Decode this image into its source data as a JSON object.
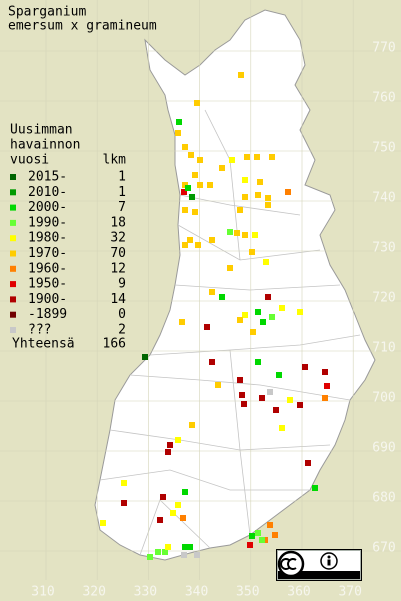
{
  "title": [
    "Sparganium",
    "emersum x gramineum"
  ],
  "legend": {
    "heading": [
      "Uusimman",
      "havainnon",
      "vuosi"
    ],
    "count_header": "lkm",
    "entries": [
      {
        "label": "2015-",
        "count": 1,
        "color": "#006400"
      },
      {
        "label": "2010-",
        "count": 1,
        "color": "#009a00"
      },
      {
        "label": "2000-",
        "count": 7,
        "color": "#00d800"
      },
      {
        "label": "1990-",
        "count": 18,
        "color": "#66ff33"
      },
      {
        "label": "1980-",
        "count": 32,
        "color": "#ffff00"
      },
      {
        "label": "1970-",
        "count": 70,
        "color": "#ffcc00"
      },
      {
        "label": "1960-",
        "count": 12,
        "color": "#ff8000"
      },
      {
        "label": "1950-",
        "count": 9,
        "color": "#e00000"
      },
      {
        "label": "1900-",
        "count": 14,
        "color": "#b00000"
      },
      {
        "label": "-1899",
        "count": 0,
        "color": "#700000"
      },
      {
        "label": "???",
        "count": 2,
        "color": "#c8c8c8"
      }
    ],
    "total_label": "Yhteensä",
    "total": 166
  },
  "x_labels": [
    310,
    320,
    330,
    340,
    350,
    360,
    370
  ],
  "y_labels": [
    670,
    680,
    690,
    700,
    710,
    720,
    730,
    740,
    750,
    760,
    770
  ]
}
